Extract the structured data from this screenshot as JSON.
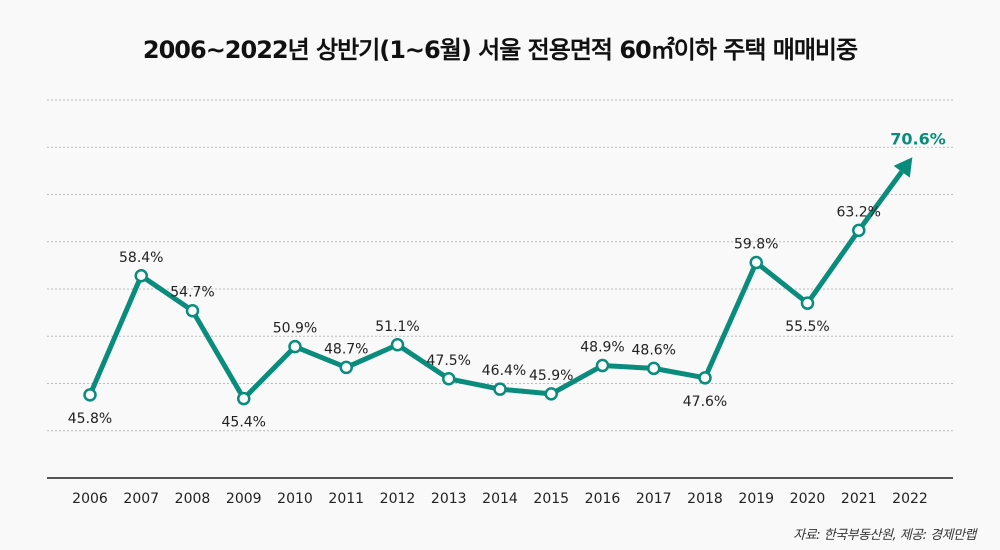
{
  "title": "2006~2022년 상반기(1~6월) 서울 전용면적 60㎡이하 주택 매매비중",
  "source": "자료: 한국부동산원, 제공: 경제만랩",
  "colors": {
    "line": "#0a8c7c",
    "highlight": "#0a8c7c",
    "grid": "#bbbbbb",
    "axis": "#555555",
    "text": "#222222"
  },
  "chart_data": {
    "type": "line",
    "title": "2006~2022년 상반기(1~6월) 서울 전용면적 60㎡이하 주택 매매비중",
    "categories": [
      "2006",
      "2007",
      "2008",
      "2009",
      "2010",
      "2011",
      "2012",
      "2013",
      "2014",
      "2015",
      "2016",
      "2017",
      "2018",
      "2019",
      "2020",
      "2021",
      "2022"
    ],
    "values": [
      45.8,
      58.4,
      54.7,
      45.4,
      50.9,
      48.7,
      51.1,
      47.5,
      46.4,
      45.9,
      48.9,
      48.6,
      47.6,
      59.8,
      55.5,
      63.2,
      70.6
    ],
    "labels": [
      "45.8%",
      "58.4%",
      "54.7%",
      "45.4%",
      "50.9%",
      "48.7%",
      "51.1%",
      "47.5%",
      "46.4%",
      "45.9%",
      "48.9%",
      "48.6%",
      "47.6%",
      "59.8%",
      "55.5%",
      "63.2%",
      "70.6%"
    ],
    "unit": "%",
    "ylim": [
      37,
      77
    ],
    "grid": true,
    "xlabel": "",
    "ylabel": ""
  }
}
